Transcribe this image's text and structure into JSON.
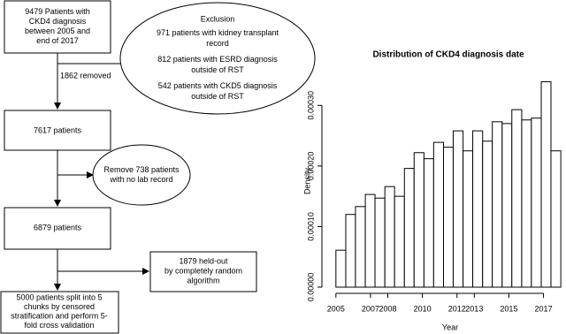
{
  "diagram": {
    "nodes": [
      {
        "lines": [
          "9479 Patients with",
          "CKD4 diagnosis",
          "between 2005 and",
          "end of 2017"
        ]
      },
      {
        "lines": [
          "Exclusion",
          "971 patients with kidney transplant",
          "record",
          "812 patients with ESRD diagnosis",
          "outside of RST",
          "542 patients with CKD5 diagnosis",
          "outside of RST"
        ]
      },
      {
        "lines": [
          "7617 patients"
        ]
      },
      {
        "lines": [
          "Remove 738 patients",
          "with no lab record"
        ]
      },
      {
        "lines": [
          "6879 patients"
        ]
      },
      {
        "lines": [
          "1879 held-out",
          "by completely random",
          "algorithm"
        ]
      },
      {
        "lines": [
          "5000 patients split into 5",
          "chunks by censored",
          "stratification and perform 5-",
          "fold cross validation"
        ]
      }
    ],
    "edge_label": "1862 removed"
  },
  "chart_data": {
    "type": "histogram",
    "title": "Distribution of CKD4 diagnosis date",
    "x_label": "Year",
    "y_label": "Density",
    "bins": [
      2005.0,
      2005.57,
      2006.13,
      2006.7,
      2007.26,
      2007.83,
      2008.39,
      2008.96,
      2009.52,
      2010.09,
      2010.65,
      2011.22,
      2011.78,
      2012.35,
      2012.91,
      2013.48,
      2014.04,
      2014.61,
      2015.17,
      2015.74,
      2016.3,
      2016.87,
      2017.43,
      2018.0
    ],
    "values": [
      6.1e-05,
      0.00012,
      0.000133,
      0.000153,
      0.000147,
      0.000166,
      0.00015,
      0.000196,
      0.000222,
      0.000212,
      0.000239,
      0.000231,
      0.000258,
      0.000225,
      0.000258,
      0.000241,
      0.000273,
      0.00027,
      0.000293,
      0.000276,
      0.000279,
      0.000339,
      0.000225
    ],
    "color": "#ffffff",
    "edge_color": "#000000",
    "xlim": [
      2004.6,
      2018.3
    ],
    "ylim": [
      0,
      0.00035
    ],
    "xticks": [
      2005,
      2007,
      2008,
      2010,
      2012,
      2013,
      2015,
      2017
    ],
    "yticks": [
      {
        "value": 0,
        "label": "0.00000"
      },
      {
        "value": 0.0001,
        "label": "0.00010"
      },
      {
        "value": 0.0002,
        "label": "0.00020"
      },
      {
        "value": 0.0003,
        "label": "0.00030"
      }
    ]
  }
}
